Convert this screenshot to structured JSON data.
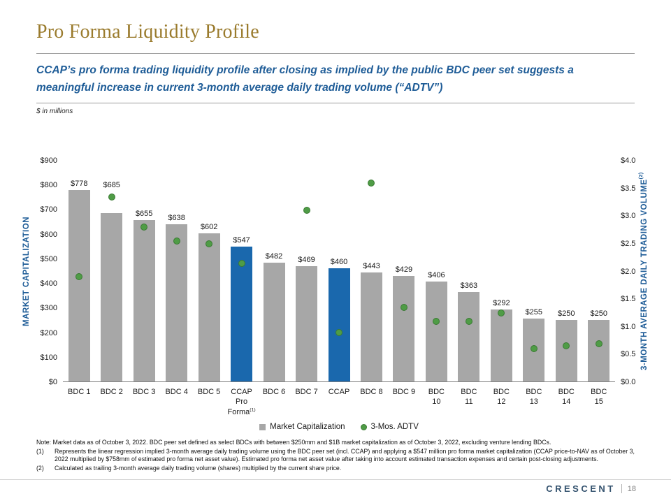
{
  "slide": {
    "title": "Pro Forma Liquidity Profile",
    "subtitle": "CCAP’s pro forma trading liquidity profile after closing as implied by the public BDC peer set suggests a meaningful increase in current 3-month average daily trading volume (“ADTV”)",
    "units_note": "$ in millions"
  },
  "chart_data": {
    "type": "bar",
    "combo": "bar + scatter, dual axis",
    "grid": false,
    "legend_position": "bottom-center",
    "categories": [
      "BDC 1",
      "BDC 2",
      "BDC 3",
      "BDC 4",
      "BDC 5",
      "CCAP Pro Forma(1)",
      "BDC 6",
      "BDC 7",
      "CCAP",
      "BDC 8",
      "BDC 9",
      "BDC 10",
      "BDC 11",
      "BDC 12",
      "BDC 13",
      "BDC 14",
      "BDC 15"
    ],
    "series": [
      {
        "name": "Market Capitalization",
        "type": "bar",
        "axis": "left",
        "values": [
          778,
          685,
          655,
          638,
          602,
          547,
          482,
          469,
          460,
          443,
          429,
          406,
          363,
          292,
          255,
          250,
          250
        ],
        "labels": [
          "$778",
          "$685",
          "$655",
          "$638",
          "$602",
          "$547",
          "$482",
          "$469",
          "$460",
          "$443",
          "$429",
          "$406",
          "$363",
          "$292",
          "$255",
          "$250",
          "$250"
        ]
      },
      {
        "name": "3-Mos. ADTV",
        "type": "scatter",
        "axis": "right",
        "values": [
          1.9,
          3.35,
          2.8,
          2.55,
          2.5,
          2.15,
          null,
          3.1,
          0.9,
          3.6,
          1.35,
          1.1,
          1.1,
          1.25,
          0.6,
          0.65,
          0.7
        ]
      }
    ],
    "left_axis": {
      "label": "MARKET CAPITALIZATION",
      "min": 0,
      "max": 900,
      "tick_step": 100,
      "tick_prefix": "$"
    },
    "right_axis": {
      "label": "3-MONTH AVERAGE DAILY TRADING VOLUME(2)",
      "min": 0,
      "max": 4,
      "tick_step": 0.5,
      "tick_prefix": "$"
    },
    "legend": [
      "Market Capitalization",
      "3-Mos. ADTV"
    ],
    "highlighted_categories": [
      "CCAP Pro Forma(1)",
      "CCAP"
    ],
    "bar_color_default": "#a7a7a7",
    "bar_color_highlight": "#1a68ad",
    "dot_color": "#4f9c46",
    "dot_border": "#3a7a33"
  },
  "notes": {
    "note": "Note: Market data as of October 3, 2022. BDC peer set defined as select BDCs with between $250mm and $1B market capitalization as of October 3, 2022, excluding venture lending BDCs.",
    "fn1_num": "(1)",
    "fn1": "Represents the linear regression implied 3-month average daily trading volume using the BDC peer set (incl. CCAP) and applying a $547 million pro forma market capitalization (CCAP price-to-NAV as of October 3, 2022 multiplied by $758mm of estimated pro forma net asset value). Estimated pro forma net asset value after taking into account estimated transaction expenses and certain post-closing adjustments.",
    "fn2_num": "(2)",
    "fn2": "Calculated as trailing 3-month average daily trading volume (shares) multiplied by the current share price."
  },
  "footer": {
    "brand": "CRESCENT",
    "page": "18"
  },
  "colors": {
    "title-gold": "#9a7b2d",
    "heading-blue": "#1e5c97",
    "axis-blue": "#1e5c97",
    "footer-navy": "#35536f",
    "rule-gray": "#9a9a9a"
  }
}
